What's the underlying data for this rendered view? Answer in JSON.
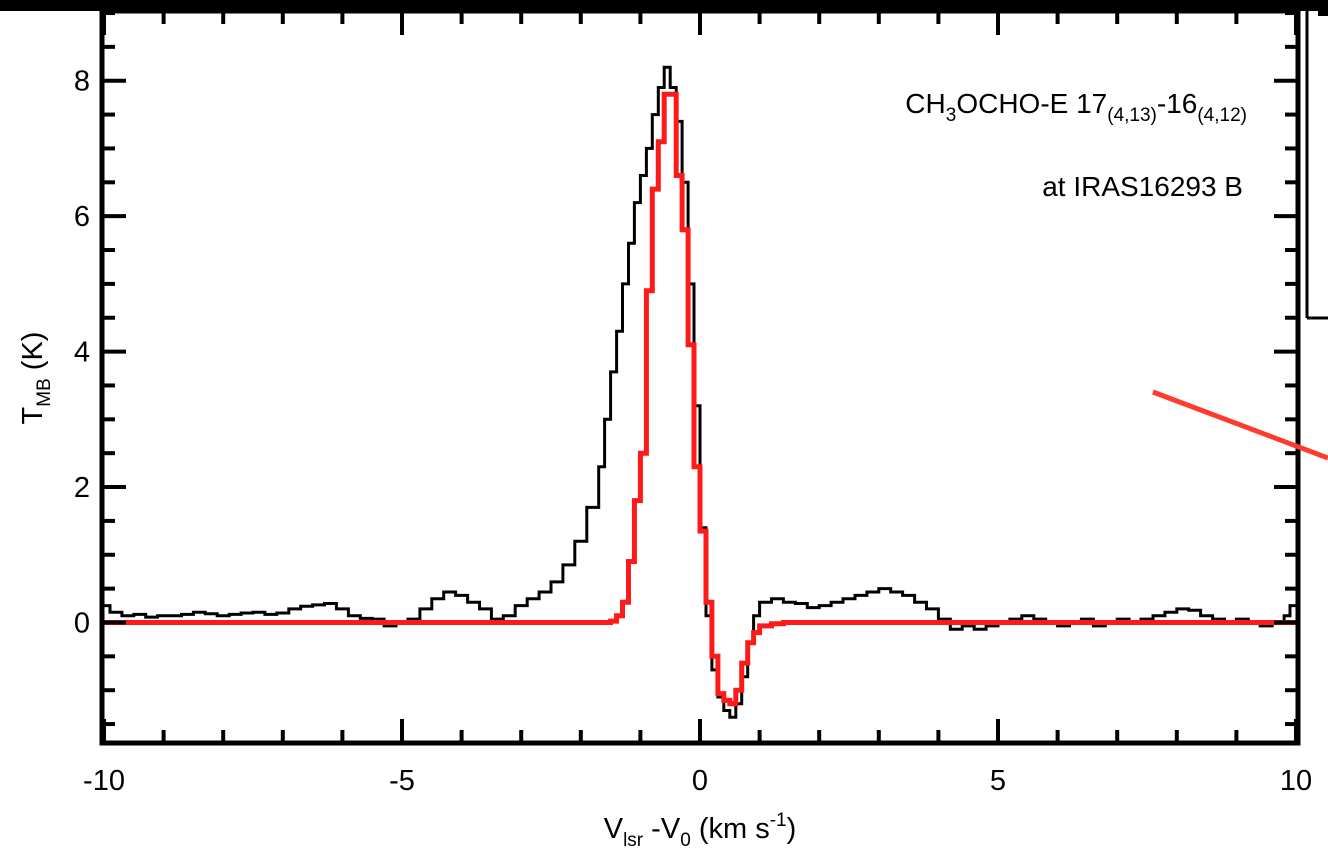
{
  "chart_data": {
    "type": "line",
    "step": true,
    "annotation": {
      "line_prefix": "CH",
      "line_sub1": "3",
      "line_mid": "OCHO-E 17",
      "line_sub2": "(4,13)",
      "line_dash": "-16",
      "line_sub3": "(4,12)",
      "source": "at IRAS16293 B"
    },
    "xlabel": {
      "v": "V",
      "v_sub": "lsr",
      "mid": " -V",
      "zero_sub": "0",
      "units": " (km s",
      "units_sup": "-1",
      "close": ")"
    },
    "ylabel": {
      "t": "T",
      "t_sub": "MB",
      "units": " (K)"
    },
    "xlim": [
      -10,
      10
    ],
    "ylim": [
      -1.75,
      9
    ],
    "x_ticks": [
      -10,
      -5,
      0,
      5,
      10
    ],
    "x_tick_labels": [
      "-10",
      "-5",
      "0",
      "5",
      "10"
    ],
    "y_ticks": [
      0,
      2,
      4,
      6,
      8
    ],
    "y_tick_labels": [
      "0",
      "2",
      "4",
      "6",
      "8"
    ],
    "series": [
      {
        "color": "#000000",
        "points": [
          [
            -10.0,
            0.25
          ],
          [
            -9.9,
            0.15
          ],
          [
            -9.7,
            0.1
          ],
          [
            -9.5,
            0.12
          ],
          [
            -9.3,
            0.08
          ],
          [
            -9.1,
            0.1
          ],
          [
            -8.9,
            0.1
          ],
          [
            -8.7,
            0.12
          ],
          [
            -8.5,
            0.15
          ],
          [
            -8.3,
            0.13
          ],
          [
            -8.1,
            0.1
          ],
          [
            -7.9,
            0.12
          ],
          [
            -7.7,
            0.14
          ],
          [
            -7.5,
            0.15
          ],
          [
            -7.3,
            0.12
          ],
          [
            -7.1,
            0.14
          ],
          [
            -6.9,
            0.2
          ],
          [
            -6.7,
            0.24
          ],
          [
            -6.5,
            0.26
          ],
          [
            -6.3,
            0.28
          ],
          [
            -6.1,
            0.2
          ],
          [
            -5.9,
            0.1
          ],
          [
            -5.7,
            0.06
          ],
          [
            -5.5,
            0.05
          ],
          [
            -5.3,
            -0.05
          ],
          [
            -5.1,
            0.0
          ],
          [
            -4.9,
            0.05
          ],
          [
            -4.7,
            0.2
          ],
          [
            -4.5,
            0.35
          ],
          [
            -4.3,
            0.45
          ],
          [
            -4.1,
            0.4
          ],
          [
            -3.9,
            0.3
          ],
          [
            -3.7,
            0.2
          ],
          [
            -3.5,
            0.05
          ],
          [
            -3.3,
            0.1
          ],
          [
            -3.1,
            0.25
          ],
          [
            -2.9,
            0.35
          ],
          [
            -2.7,
            0.45
          ],
          [
            -2.5,
            0.6
          ],
          [
            -2.3,
            0.85
          ],
          [
            -2.1,
            1.2
          ],
          [
            -1.9,
            1.7
          ],
          [
            -1.7,
            2.3
          ],
          [
            -1.6,
            3.0
          ],
          [
            -1.5,
            3.7
          ],
          [
            -1.4,
            4.3
          ],
          [
            -1.3,
            5.0
          ],
          [
            -1.2,
            5.6
          ],
          [
            -1.1,
            6.2
          ],
          [
            -1.0,
            6.6
          ],
          [
            -0.9,
            7.0
          ],
          [
            -0.8,
            7.5
          ],
          [
            -0.7,
            7.9
          ],
          [
            -0.6,
            8.2
          ],
          [
            -0.5,
            7.9
          ],
          [
            -0.4,
            7.4
          ],
          [
            -0.3,
            6.5
          ],
          [
            -0.2,
            5.0
          ],
          [
            -0.1,
            3.2
          ],
          [
            0.0,
            1.4
          ],
          [
            0.1,
            0.1
          ],
          [
            0.2,
            -0.7
          ],
          [
            0.3,
            -1.1
          ],
          [
            0.4,
            -1.3
          ],
          [
            0.5,
            -1.4
          ],
          [
            0.6,
            -1.2
          ],
          [
            0.7,
            -0.8
          ],
          [
            0.8,
            -0.3
          ],
          [
            0.9,
            0.1
          ],
          [
            1.0,
            0.3
          ],
          [
            1.2,
            0.35
          ],
          [
            1.4,
            0.3
          ],
          [
            1.6,
            0.28
          ],
          [
            1.8,
            0.22
          ],
          [
            2.0,
            0.25
          ],
          [
            2.2,
            0.3
          ],
          [
            2.4,
            0.35
          ],
          [
            2.6,
            0.4
          ],
          [
            2.8,
            0.45
          ],
          [
            3.0,
            0.5
          ],
          [
            3.2,
            0.45
          ],
          [
            3.4,
            0.4
          ],
          [
            3.6,
            0.3
          ],
          [
            3.8,
            0.2
          ],
          [
            4.0,
            0.05
          ],
          [
            4.2,
            -0.1
          ],
          [
            4.4,
            -0.05
          ],
          [
            4.6,
            -0.1
          ],
          [
            4.8,
            -0.05
          ],
          [
            5.0,
            0.0
          ],
          [
            5.2,
            0.05
          ],
          [
            5.4,
            0.1
          ],
          [
            5.6,
            0.05
          ],
          [
            5.8,
            0.0
          ],
          [
            6.0,
            -0.05
          ],
          [
            6.2,
            0.0
          ],
          [
            6.4,
            0.05
          ],
          [
            6.6,
            -0.05
          ],
          [
            6.8,
            0.0
          ],
          [
            7.0,
            0.05
          ],
          [
            7.2,
            0.0
          ],
          [
            7.4,
            0.05
          ],
          [
            7.6,
            0.1
          ],
          [
            7.8,
            0.15
          ],
          [
            8.0,
            0.2
          ],
          [
            8.2,
            0.18
          ],
          [
            8.4,
            0.1
          ],
          [
            8.6,
            0.05
          ],
          [
            8.8,
            0.0
          ],
          [
            9.0,
            0.05
          ],
          [
            9.2,
            0.0
          ],
          [
            9.4,
            -0.05
          ],
          [
            9.6,
            0.0
          ],
          [
            9.8,
            0.1
          ],
          [
            9.9,
            0.25
          ]
        ]
      },
      {
        "color": "#ff1a1a",
        "points": [
          [
            -10.0,
            0.0
          ],
          [
            -1.6,
            0.0
          ],
          [
            -1.5,
            0.02
          ],
          [
            -1.4,
            0.1
          ],
          [
            -1.3,
            0.3
          ],
          [
            -1.2,
            0.9
          ],
          [
            -1.1,
            1.8
          ],
          [
            -1.0,
            2.5
          ],
          [
            -0.9,
            4.9
          ],
          [
            -0.8,
            6.4
          ],
          [
            -0.7,
            7.1
          ],
          [
            -0.6,
            7.8
          ],
          [
            -0.5,
            7.8
          ],
          [
            -0.4,
            6.6
          ],
          [
            -0.3,
            5.8
          ],
          [
            -0.2,
            4.1
          ],
          [
            -0.1,
            2.3
          ],
          [
            0.0,
            1.35
          ],
          [
            0.1,
            0.3
          ],
          [
            0.2,
            -0.5
          ],
          [
            0.3,
            -1.05
          ],
          [
            0.4,
            -1.15
          ],
          [
            0.5,
            -1.2
          ],
          [
            0.6,
            -1.0
          ],
          [
            0.7,
            -0.6
          ],
          [
            0.8,
            -0.3
          ],
          [
            0.9,
            -0.15
          ],
          [
            1.0,
            -0.05
          ],
          [
            1.2,
            -0.02
          ],
          [
            1.4,
            0.0
          ],
          [
            10.0,
            0.0
          ]
        ]
      }
    ]
  }
}
